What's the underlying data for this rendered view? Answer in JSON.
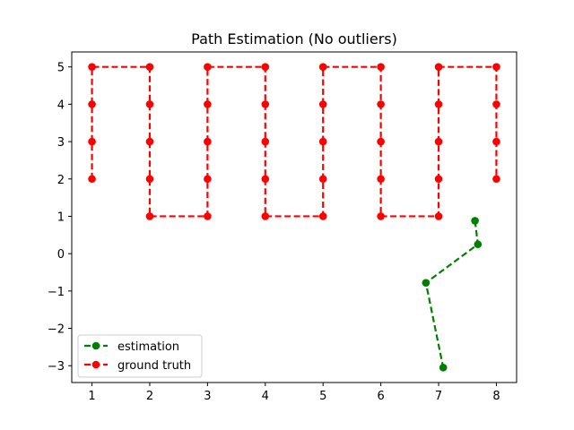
{
  "chart_data": {
    "type": "line",
    "title": "Path Estimation (No outliers)",
    "xlabel": "",
    "ylabel": "",
    "xlim": [
      0.65,
      8.35
    ],
    "ylim": [
      -3.45,
      5.4
    ],
    "xticks": [
      1,
      2,
      3,
      4,
      5,
      6,
      7,
      8
    ],
    "yticks": [
      -3,
      -2,
      -1,
      0,
      1,
      2,
      3,
      4,
      5
    ],
    "ytick_labels": [
      "−3",
      "−2",
      "−1",
      "0",
      "1",
      "2",
      "3",
      "4",
      "5"
    ],
    "grid": false,
    "legend_position": "lower-left",
    "series": [
      {
        "name": "estimation",
        "color": "#008000",
        "style": "dashed",
        "marker": "circle",
        "x": [
          7.63,
          7.68,
          6.78,
          7.08
        ],
        "y": [
          0.88,
          0.25,
          -0.78,
          -3.05
        ]
      },
      {
        "name": "ground truth",
        "color": "#ff0000",
        "style": "dashed",
        "marker": "circle",
        "x": [
          1,
          1,
          1,
          1,
          2,
          2,
          2,
          2,
          2,
          3,
          3,
          3,
          3,
          3,
          4,
          4,
          4,
          4,
          4,
          5,
          5,
          5,
          5,
          5,
          6,
          6,
          6,
          6,
          6,
          7,
          7,
          7,
          7,
          7,
          8,
          8,
          8,
          8
        ],
        "y": [
          2,
          3,
          4,
          5,
          5,
          4,
          3,
          2,
          1,
          1,
          2,
          3,
          4,
          5,
          5,
          4,
          3,
          2,
          1,
          1,
          2,
          3,
          4,
          5,
          5,
          4,
          3,
          2,
          1,
          1,
          2,
          3,
          4,
          5,
          5,
          4,
          3,
          2
        ]
      }
    ]
  }
}
